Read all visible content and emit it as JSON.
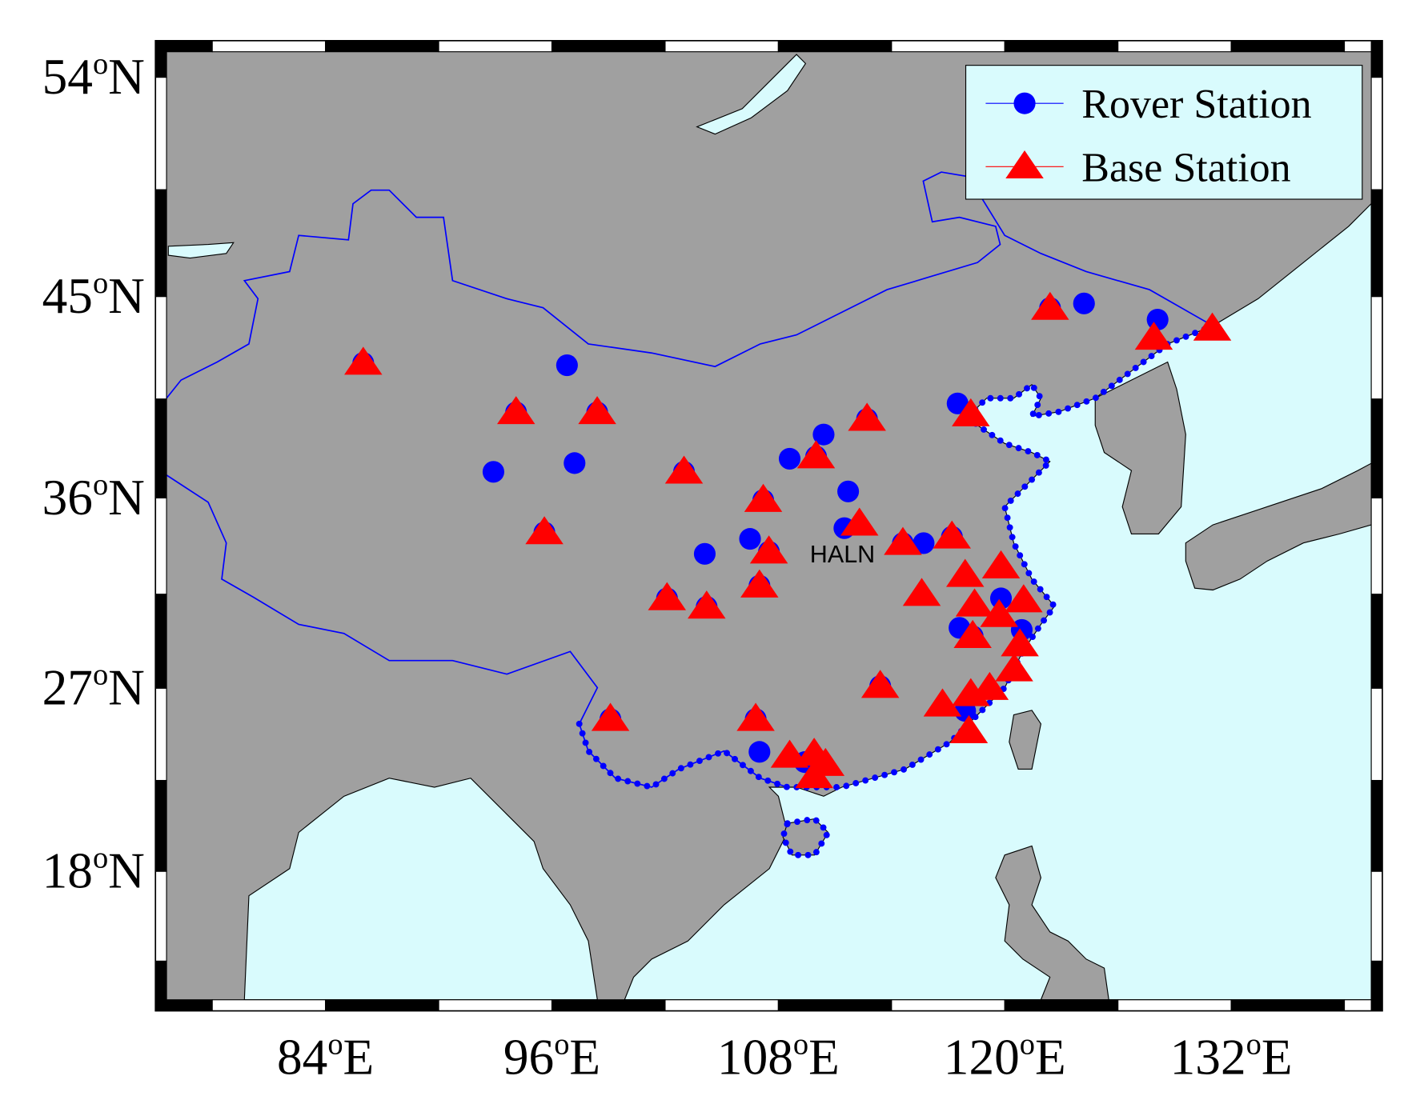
{
  "chart_data": {
    "type": "scatter",
    "xlim": [
      75,
      140
    ],
    "ylim": [
      11,
      55.4
    ],
    "xticks": [
      {
        "value": 84,
        "label": "84oE"
      },
      {
        "value": 96,
        "label": "96oE"
      },
      {
        "value": 108,
        "label": "108oE"
      },
      {
        "value": 120,
        "label": "120oE"
      },
      {
        "value": 132,
        "label": "132oE"
      }
    ],
    "yticks": [
      {
        "value": 18,
        "label": "18oN"
      },
      {
        "value": 27,
        "label": "27oN"
      },
      {
        "value": 36,
        "label": "36oN"
      },
      {
        "value": 45,
        "label": "45oN"
      },
      {
        "value": 54,
        "label": "54oN"
      }
    ],
    "legend": "upper right",
    "series": [
      {
        "name": "Rover Station",
        "color": "#0000ff",
        "marker": "circle",
        "x": [
          86.0,
          96.8,
          98.4,
          94.1,
          92.9,
          97.2,
          103.0,
          95.6,
          104.1,
          106.5,
          107.2,
          107.5,
          107.0,
          102.1,
          104.2,
          108.6,
          110.4,
          110.0,
          112.7,
          111.7,
          111.5,
          114.6,
          115.7,
          117.2,
          117.5,
          122.4,
          124.2,
          128.1,
          119.8,
          117.6,
          118.3,
          120.9,
          113.4,
          117.9,
          99.1,
          106.8,
          107.0,
          109.4
        ],
        "values": [
          42.1,
          42.0,
          39.9,
          39.9,
          37.2,
          37.6,
          37.2,
          34.4,
          33.4,
          34.1,
          35.9,
          33.5,
          31.9,
          31.3,
          30.9,
          37.8,
          38.9,
          37.9,
          39.6,
          36.3,
          34.6,
          33.9,
          33.9,
          34.2,
          40.3,
          44.5,
          44.7,
          44.0,
          31.3,
          29.9,
          29.5,
          29.8,
          27.1,
          25.9,
          25.5,
          25.5,
          23.9,
          23.4
        ]
      },
      {
        "name": "Base Station",
        "color": "#ff0000",
        "marker": "triangle",
        "x": [
          86.0,
          94.1,
          98.4,
          103.0,
          95.6,
          107.2,
          107.5,
          107.0,
          102.1,
          104.2,
          110.0,
          112.7,
          112.3,
          114.6,
          117.2,
          118.2,
          122.4,
          127.9,
          131.0,
          117.9,
          119.8,
          115.6,
          118.4,
          121.0,
          118.3,
          119.7,
          120.8,
          120.5,
          113.4,
          119.2,
          118.2,
          116.7,
          118.1,
          99.1,
          106.8,
          108.6,
          109.9,
          110.5,
          109.9
        ],
        "values": [
          42.1,
          39.9,
          39.9,
          37.2,
          34.4,
          35.9,
          33.5,
          31.9,
          31.3,
          30.9,
          37.9,
          39.6,
          34.8,
          33.9,
          34.2,
          39.8,
          44.5,
          43.2,
          43.6,
          32.4,
          32.8,
          31.5,
          31.0,
          31.2,
          29.5,
          30.5,
          29.1,
          27.9,
          27.1,
          27.0,
          26.7,
          26.2,
          24.9,
          25.5,
          25.5,
          23.7,
          23.8,
          23.3,
          22.7
        ]
      }
    ],
    "annotations": [
      {
        "text": "HALN",
        "x": 111.4,
        "y": 33.0
      }
    ]
  }
}
